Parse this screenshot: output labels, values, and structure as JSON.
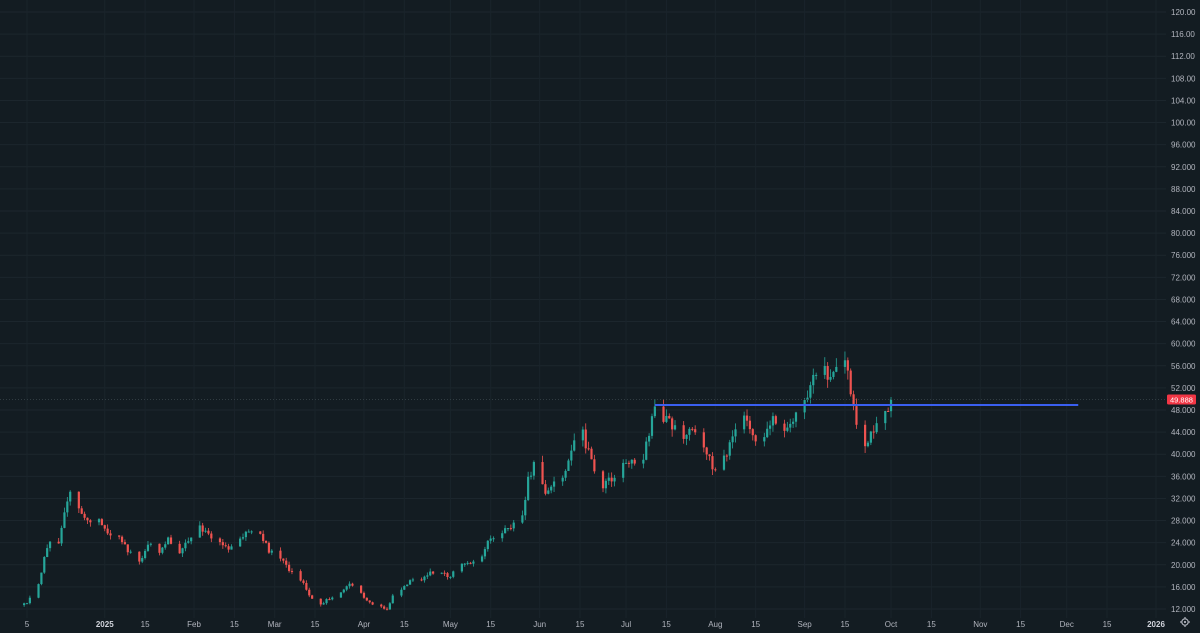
{
  "chart_data": {
    "type": "candlestick",
    "y_axis": {
      "ticks": [
        "12.000",
        "16.000",
        "20.000",
        "24.000",
        "28.000",
        "32.000",
        "36.000",
        "40.000",
        "44.000",
        "48.000",
        "52.000",
        "56.000",
        "60.000",
        "64.000",
        "68.000",
        "72.000",
        "76.000",
        "80.000",
        "84.000",
        "88.000",
        "92.000",
        "96.000",
        "100.00",
        "104.00",
        "108.00",
        "112.00",
        "116.00",
        "120.00"
      ],
      "range": [
        11.4,
        122.2
      ]
    },
    "x_axis": {
      "ticks": [
        {
          "label": "5",
          "date": "2024-12-05",
          "bold": false
        },
        {
          "label": "2025",
          "date": "2025-01-01",
          "bold": true
        },
        {
          "label": "15",
          "date": "2025-01-15",
          "bold": false
        },
        {
          "label": "Feb",
          "date": "2025-02-01",
          "bold": false
        },
        {
          "label": "15",
          "date": "2025-02-15",
          "bold": false
        },
        {
          "label": "Mar",
          "date": "2025-03-01",
          "bold": false
        },
        {
          "label": "15",
          "date": "2025-03-15",
          "bold": false
        },
        {
          "label": "Apr",
          "date": "2025-04-01",
          "bold": false
        },
        {
          "label": "15",
          "date": "2025-04-15",
          "bold": false
        },
        {
          "label": "May",
          "date": "2025-05-01",
          "bold": false
        },
        {
          "label": "15",
          "date": "2025-05-15",
          "bold": false
        },
        {
          "label": "Jun",
          "date": "2025-06-01",
          "bold": false
        },
        {
          "label": "15",
          "date": "2025-06-15",
          "bold": false
        },
        {
          "label": "Jul",
          "date": "2025-07-01",
          "bold": false
        },
        {
          "label": "15",
          "date": "2025-07-15",
          "bold": false
        },
        {
          "label": "Aug",
          "date": "2025-08-01",
          "bold": false
        },
        {
          "label": "15",
          "date": "2025-08-15",
          "bold": false
        },
        {
          "label": "Sep",
          "date": "2025-09-01",
          "bold": false
        },
        {
          "label": "15",
          "date": "2025-09-15",
          "bold": false
        },
        {
          "label": "Oct",
          "date": "2025-10-01",
          "bold": false
        },
        {
          "label": "15",
          "date": "2025-10-15",
          "bold": false
        },
        {
          "label": "Nov",
          "date": "2025-11-01",
          "bold": false
        },
        {
          "label": "15",
          "date": "2025-11-15",
          "bold": false
        },
        {
          "label": "Dec",
          "date": "2025-12-01",
          "bold": false
        },
        {
          "label": "15",
          "date": "2025-12-15",
          "bold": false
        },
        {
          "label": "2026",
          "date": "2026-01-01",
          "bold": true
        }
      ]
    },
    "price_keypoints": [
      [
        "2024-12-04",
        12.9
      ],
      [
        "2024-12-06",
        13.8
      ],
      [
        "2024-12-09",
        16.5
      ],
      [
        "2024-12-11",
        21.5
      ],
      [
        "2024-12-13",
        24.0
      ],
      [
        "2024-12-16",
        23.5
      ],
      [
        "2024-12-18",
        29.0
      ],
      [
        "2024-12-20",
        33.0
      ],
      [
        "2024-12-23",
        30.5
      ],
      [
        "2024-12-26",
        27.5
      ],
      [
        "2024-12-30",
        28.5
      ],
      [
        "2025-01-02",
        26.0
      ],
      [
        "2025-01-06",
        25.0
      ],
      [
        "2025-01-09",
        22.5
      ],
      [
        "2025-01-13",
        20.5
      ],
      [
        "2025-01-16",
        24.0
      ],
      [
        "2025-01-20",
        22.0
      ],
      [
        "2025-01-23",
        24.5
      ],
      [
        "2025-01-27",
        22.5
      ],
      [
        "2025-01-30",
        24.0
      ],
      [
        "2025-02-03",
        27.0
      ],
      [
        "2025-02-06",
        25.5
      ],
      [
        "2025-02-10",
        24.0
      ],
      [
        "2025-02-13",
        23.0
      ],
      [
        "2025-02-17",
        24.5
      ],
      [
        "2025-02-20",
        26.5
      ],
      [
        "2025-02-24",
        26.0
      ],
      [
        "2025-02-27",
        22.5
      ],
      [
        "2025-03-03",
        21.0
      ],
      [
        "2025-03-06",
        19.0
      ],
      [
        "2025-03-10",
        17.5
      ],
      [
        "2025-03-13",
        14.5
      ],
      [
        "2025-03-17",
        13.0
      ],
      [
        "2025-03-20",
        14.0
      ],
      [
        "2025-03-24",
        15.0
      ],
      [
        "2025-03-27",
        16.5
      ],
      [
        "2025-03-31",
        15.0
      ],
      [
        "2025-04-03",
        13.0
      ],
      [
        "2025-04-07",
        12.3
      ],
      [
        "2025-04-09",
        11.9
      ],
      [
        "2025-04-11",
        14.5
      ],
      [
        "2025-04-14",
        15.5
      ],
      [
        "2025-04-17",
        17.0
      ],
      [
        "2025-04-21",
        17.5
      ],
      [
        "2025-04-24",
        18.5
      ],
      [
        "2025-04-28",
        18.5
      ],
      [
        "2025-05-01",
        18.0
      ],
      [
        "2025-05-05",
        20.0
      ],
      [
        "2025-05-08",
        20.5
      ],
      [
        "2025-05-12",
        22.0
      ],
      [
        "2025-05-15",
        25.0
      ],
      [
        "2025-05-19",
        26.0
      ],
      [
        "2025-05-22",
        27.0
      ],
      [
        "2025-05-26",
        29.0
      ],
      [
        "2025-05-28",
        35.5
      ],
      [
        "2025-05-30",
        38.0
      ],
      [
        "2025-06-03",
        33.0
      ],
      [
        "2025-06-06",
        34.5
      ],
      [
        "2025-06-10",
        37.0
      ],
      [
        "2025-06-13",
        42.5
      ],
      [
        "2025-06-16",
        43.5
      ],
      [
        "2025-06-19",
        38.5
      ],
      [
        "2025-06-23",
        34.0
      ],
      [
        "2025-06-26",
        35.5
      ],
      [
        "2025-06-30",
        38.0
      ],
      [
        "2025-07-03",
        38.5
      ],
      [
        "2025-07-07",
        39.0
      ],
      [
        "2025-07-09",
        44.0
      ],
      [
        "2025-07-11",
        48.5
      ],
      [
        "2025-07-14",
        46.5
      ],
      [
        "2025-07-17",
        45.0
      ],
      [
        "2025-07-21",
        43.5
      ],
      [
        "2025-07-24",
        44.5
      ],
      [
        "2025-07-28",
        42.0
      ],
      [
        "2025-07-31",
        37.5
      ],
      [
        "2025-08-04",
        39.0
      ],
      [
        "2025-08-07",
        43.0
      ],
      [
        "2025-08-11",
        47.0
      ],
      [
        "2025-08-14",
        42.5
      ],
      [
        "2025-08-18",
        43.5
      ],
      [
        "2025-08-21",
        47.0
      ],
      [
        "2025-08-25",
        45.0
      ],
      [
        "2025-08-28",
        46.5
      ],
      [
        "2025-09-01",
        49.5
      ],
      [
        "2025-09-04",
        54.5
      ],
      [
        "2025-09-08",
        55.5
      ],
      [
        "2025-09-10",
        53.5
      ],
      [
        "2025-09-12",
        56.0
      ],
      [
        "2025-09-15",
        57.5
      ],
      [
        "2025-09-17",
        51.0
      ],
      [
        "2025-09-19",
        45.0
      ],
      [
        "2025-09-22",
        41.5
      ],
      [
        "2025-09-24",
        43.5
      ],
      [
        "2025-09-26",
        46.0
      ],
      [
        "2025-09-29",
        47.5
      ],
      [
        "2025-10-01",
        49.9
      ]
    ],
    "horizontal_line": {
      "value": 48.9,
      "from": "2025-07-11",
      "to": "2025-12-05",
      "color": "#3a5ff0"
    },
    "current_price": {
      "value": 49.9,
      "label": "49.888",
      "color": "#f23645"
    },
    "up_color": "#26a69a",
    "down_color": "#ef5350"
  },
  "icons": {
    "settings": "gear-icon"
  }
}
